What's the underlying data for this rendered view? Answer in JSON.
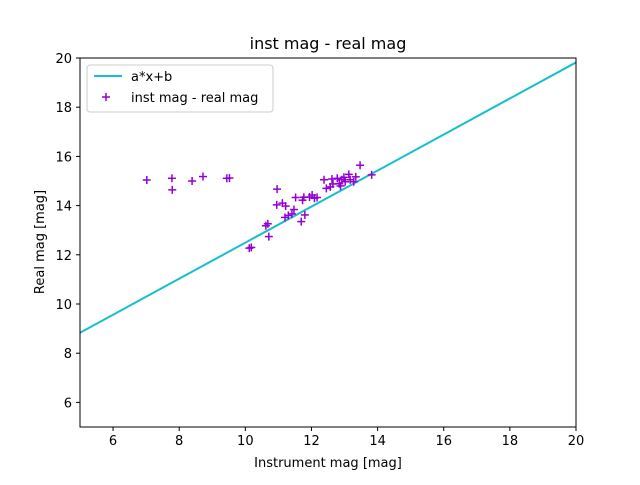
{
  "chart_data": {
    "type": "scatter",
    "title": "inst mag - real mag",
    "xlabel": "Instrument mag [mag]",
    "ylabel": "Real mag [mag]",
    "xlim": [
      5,
      20
    ],
    "ylim": [
      5,
      20
    ],
    "xticks": [
      6,
      8,
      10,
      12,
      14,
      16,
      18,
      20
    ],
    "yticks": [
      6,
      8,
      10,
      12,
      14,
      16,
      18,
      20
    ],
    "grid": false,
    "legend_position": "upper left",
    "series": [
      {
        "name": "a*x+b",
        "type": "line",
        "color": "#17becf",
        "x": [
          5,
          20
        ],
        "y": [
          8.83,
          19.82
        ]
      },
      {
        "name": "inst mag - real mag",
        "type": "scatter",
        "marker": "+",
        "color": "#9400d3",
        "points": [
          [
            7.02,
            15.04
          ],
          [
            7.78,
            15.11
          ],
          [
            7.79,
            14.64
          ],
          [
            8.39,
            15.0
          ],
          [
            8.72,
            15.18
          ],
          [
            9.44,
            15.11
          ],
          [
            9.52,
            15.12
          ],
          [
            10.12,
            12.27
          ],
          [
            10.18,
            12.3
          ],
          [
            10.62,
            13.18
          ],
          [
            10.68,
            13.26
          ],
          [
            10.71,
            12.74
          ],
          [
            10.95,
            14.03
          ],
          [
            10.96,
            14.67
          ],
          [
            11.12,
            14.1
          ],
          [
            11.2,
            13.52
          ],
          [
            11.22,
            13.98
          ],
          [
            11.3,
            13.6
          ],
          [
            11.41,
            13.66
          ],
          [
            11.47,
            13.84
          ],
          [
            11.52,
            14.33
          ],
          [
            11.69,
            13.35
          ],
          [
            11.73,
            14.22
          ],
          [
            11.77,
            14.34
          ],
          [
            11.8,
            13.62
          ],
          [
            11.94,
            14.35
          ],
          [
            12.02,
            14.43
          ],
          [
            12.09,
            14.3
          ],
          [
            12.17,
            14.33
          ],
          [
            12.38,
            15.05
          ],
          [
            12.45,
            14.7
          ],
          [
            12.57,
            14.76
          ],
          [
            12.62,
            15.08
          ],
          [
            12.65,
            14.88
          ],
          [
            12.78,
            15.11
          ],
          [
            12.84,
            14.89
          ],
          [
            12.88,
            14.8
          ],
          [
            12.92,
            15.05
          ],
          [
            12.98,
            15.15
          ],
          [
            13.02,
            14.97
          ],
          [
            13.13,
            15.27
          ],
          [
            13.17,
            15.05
          ],
          [
            13.28,
            14.97
          ],
          [
            13.34,
            15.17
          ],
          [
            13.47,
            15.64
          ],
          [
            13.82,
            15.25
          ]
        ]
      }
    ]
  }
}
